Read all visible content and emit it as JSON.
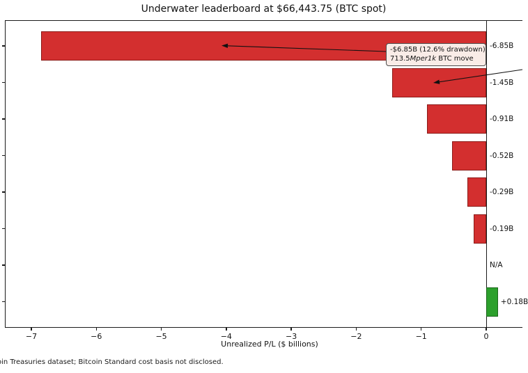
{
  "title": "Underwater leaderboard at $66,443.75 (BTC spot)",
  "chart_data": {
    "type": "bar",
    "orientation": "horizontal",
    "title": "Underwater leaderboard at $66,443.75 (BTC spot)",
    "xlabel": "Unrealized P/L ($ billions)",
    "xlim": [
      -7.41,
      0.56
    ],
    "grid": false,
    "zero_line": true,
    "x_ticks": [
      {
        "value": -7,
        "label": "−7"
      },
      {
        "value": -6,
        "label": "−6"
      },
      {
        "value": -5,
        "label": "−5"
      },
      {
        "value": -4,
        "label": "−4"
      },
      {
        "value": -3,
        "label": "−3"
      },
      {
        "value": -2,
        "label": "−2"
      },
      {
        "value": -1,
        "label": "−1"
      },
      {
        "value": 0,
        "label": "0"
      }
    ],
    "rows": [
      {
        "value_billions": -6.85,
        "bar_label": "-6.85B",
        "color": "negative"
      },
      {
        "value_billions": -1.45,
        "bar_label": "-1.45B",
        "color": "negative"
      },
      {
        "value_billions": -0.91,
        "bar_label": "-0.91B",
        "color": "negative"
      },
      {
        "value_billions": -0.52,
        "bar_label": "-0.52B",
        "color": "negative"
      },
      {
        "value_billions": -0.29,
        "bar_label": "-0.29B",
        "color": "negative"
      },
      {
        "value_billions": -0.19,
        "bar_label": "-0.19B",
        "color": "negative"
      },
      {
        "value_billions": null,
        "bar_label": "N/A",
        "color": "none"
      },
      {
        "value_billions": 0.18,
        "bar_label": "+0.18B",
        "color": "positive"
      }
    ]
  },
  "annotation": {
    "line1": "-$6.85B (12.6% drawdown)",
    "line2_start": "713.5",
    "line2_italic": "Mper1k",
    "line2_end": " BTC move"
  },
  "footer": "oin Treasuries dataset; Bitcoin Standard cost basis not disclosed.",
  "colors": {
    "negative_fill": "#d32f2f",
    "negative_edge": "#8b1a17",
    "positive_fill": "#2ca02c",
    "positive_edge": "#1a661a",
    "annotation_bg": "#f9ece7",
    "axis": "#1a1a1a"
  }
}
